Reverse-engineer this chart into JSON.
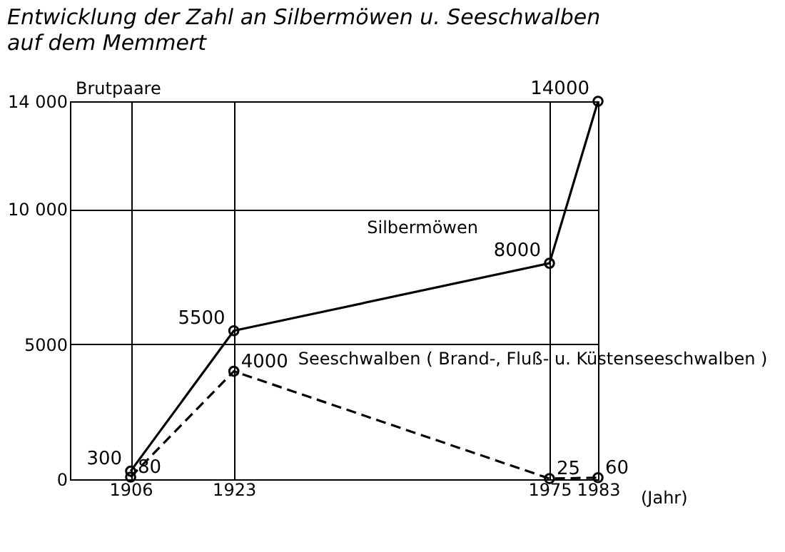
{
  "chart_data": {
    "type": "line",
    "title": "Entwicklung der Zahl an Silbermöwen u. Seeschwalben",
    "subtitle": "auf dem Memmert",
    "ylabel": "Brutpaare",
    "xlabel": "(Jahr)",
    "x": [
      1906,
      1923,
      1975,
      1983
    ],
    "series": [
      {
        "name": "Silbermöwen",
        "color": "#000000",
        "values": [
          300,
          5500,
          8000,
          14000
        ],
        "line_style": "solid"
      },
      {
        "name": "Seeschwalben ( Brand-, Fluß- u. Küstenseeschwalben )",
        "color": "#000000",
        "values": [
          80,
          4000,
          25,
          60
        ],
        "line_style": "dashed"
      }
    ],
    "xlim": [
      1896,
      1983
    ],
    "xticks": [
      1906,
      1923,
      1975,
      1983
    ],
    "ylim": [
      0,
      14000
    ],
    "yticks": [
      0,
      5000,
      {
        "value": 10000,
        "label": "10 000"
      },
      {
        "value": 14000,
        "label": "14 000"
      }
    ],
    "grid": true,
    "marker": "circle",
    "data_labels": true
  }
}
